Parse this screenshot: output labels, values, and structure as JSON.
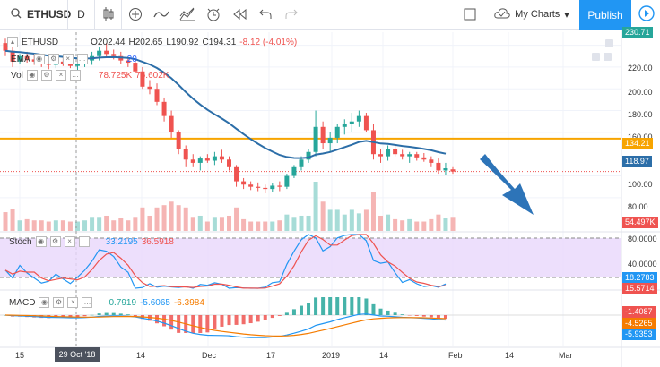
{
  "toolbar": {
    "symbol": "ETHUSD",
    "interval": "D",
    "my_charts": "My Charts",
    "publish": "Publish",
    "icons": [
      "search-icon",
      "candles-icon",
      "compare-icon",
      "indicators-icon",
      "templates-icon",
      "alert-icon",
      "replay-icon",
      "undo-icon",
      "redo-icon",
      "fullscreen-box-icon",
      "cloud-icon",
      "settings-icon",
      "fullscreen-icon",
      "snapshot-icon",
      "play-icon"
    ]
  },
  "legend": {
    "main_symbol": "ETHUSD",
    "open": "O202.44",
    "high": "H202.65",
    "low": "L190.92",
    "close": "C194.31",
    "change": "-8.12 (-4.01%)",
    "ema_label": "EMA",
    "ema_value": "20",
    "volume_label": "Vol",
    "volume_a": "78.725K",
    "volume_b": "76.602K",
    "stoch_label": "Stoch",
    "stoch_k": "33.2195",
    "stoch_d": "36.5918",
    "macd_label": "MACD",
    "macd_hist": "0.7919",
    "macd_line": "-5.6065",
    "macd_signal": "-6.3984"
  },
  "price_axis": {
    "labels": [
      "230.71",
      "220.00",
      "200.00",
      "180.00",
      "160.00",
      "140.00",
      "134.21",
      "118.97",
      "100.00",
      "80.00",
      "54.497K"
    ],
    "badge_current": "230.71",
    "badge_hline": "134.21",
    "badge_ema": "118.97",
    "badge_vol": "54.497K"
  },
  "stoch_axis": {
    "labels": [
      "80.0000",
      "40.0000"
    ],
    "badge_k": "18.2783",
    "badge_d": "15.5714"
  },
  "macd_axis": {
    "badge_hist": "-1.4087",
    "badge_signal": "-4.5265",
    "badge_line": "-5.9353"
  },
  "time_axis": {
    "labels": [
      "15",
      "Dec",
      "17",
      "2019",
      "14",
      "Feb",
      "14",
      "Mar"
    ],
    "crosshair": "29 Oct '18"
  },
  "colors": {
    "up": "#26a69a",
    "down": "#ef5350",
    "ema": "#2962ff",
    "ema_line": "#2c6ea8",
    "hline": "#f7a400",
    "stoch_bg": "#e8d7fb",
    "stoch_k": "#2196f3",
    "stoch_d": "#ef5350",
    "macd_line": "#2196f3",
    "macd_signal": "#f57c00",
    "arrow": "#2d74b8",
    "publish": "#2196f3"
  },
  "chart_data": {
    "type": "candlestick",
    "title": "ETHUSD, D",
    "ylim": [
      70,
      232
    ],
    "ohlc": [
      [
        222,
        226,
        210,
        215
      ],
      [
        215,
        219,
        200,
        205
      ],
      [
        205,
        212,
        203,
        210
      ],
      [
        210,
        214,
        204,
        207
      ],
      [
        207,
        211,
        202,
        205
      ],
      [
        205,
        209,
        200,
        203
      ],
      [
        203,
        206,
        198,
        202
      ],
      [
        202,
        208,
        199,
        205
      ],
      [
        205,
        210,
        201,
        203
      ],
      [
        203,
        207,
        199,
        201
      ],
      [
        201,
        205,
        197,
        203
      ],
      [
        203,
        209,
        200,
        206
      ],
      [
        206,
        214,
        202,
        210
      ],
      [
        210,
        218,
        206,
        215
      ],
      [
        215,
        222,
        209,
        212
      ],
      [
        212,
        216,
        207,
        210
      ],
      [
        210,
        214,
        203,
        206
      ],
      [
        206,
        209,
        200,
        204
      ],
      [
        204,
        207,
        195,
        196
      ],
      [
        196,
        200,
        180,
        182
      ],
      [
        182,
        188,
        175,
        180
      ],
      [
        180,
        185,
        165,
        168
      ],
      [
        168,
        172,
        150,
        155
      ],
      [
        155,
        160,
        135,
        140
      ],
      [
        140,
        142,
        120,
        125
      ],
      [
        125,
        128,
        108,
        115
      ],
      [
        115,
        120,
        108,
        112
      ],
      [
        112,
        118,
        105,
        116
      ],
      [
        116,
        120,
        112,
        114
      ],
      [
        114,
        122,
        110,
        118
      ],
      [
        118,
        124,
        112,
        115
      ],
      [
        115,
        118,
        105,
        108
      ],
      [
        108,
        110,
        90,
        95
      ],
      [
        95,
        98,
        88,
        92
      ],
      [
        92,
        95,
        87,
        90
      ],
      [
        90,
        94,
        86,
        89
      ],
      [
        89,
        92,
        84,
        88
      ],
      [
        88,
        93,
        85,
        91
      ],
      [
        91,
        95,
        86,
        90
      ],
      [
        90,
        102,
        88,
        100
      ],
      [
        100,
        110,
        98,
        108
      ],
      [
        108,
        118,
        105,
        115
      ],
      [
        115,
        125,
        112,
        122
      ],
      [
        122,
        160,
        118,
        145
      ],
      [
        145,
        150,
        125,
        130
      ],
      [
        130,
        140,
        122,
        135
      ],
      [
        135,
        148,
        130,
        145
      ],
      [
        145,
        152,
        138,
        148
      ],
      [
        148,
        158,
        140,
        150
      ],
      [
        150,
        160,
        145,
        155
      ],
      [
        155,
        158,
        140,
        142
      ],
      [
        142,
        148,
        115,
        120
      ],
      [
        120,
        125,
        112,
        118
      ],
      [
        118,
        128,
        114,
        125
      ],
      [
        125,
        128,
        118,
        120
      ],
      [
        120,
        124,
        115,
        118
      ],
      [
        118,
        122,
        112,
        120
      ],
      [
        120,
        122,
        114,
        117
      ],
      [
        117,
        121,
        113,
        115
      ],
      [
        115,
        118,
        108,
        112
      ],
      [
        112,
        116,
        102,
        105
      ],
      [
        105,
        112,
        101,
        107
      ],
      [
        202,
        203,
        191,
        194
      ]
    ],
    "ema_period": 20,
    "hline": 134.21,
    "stoch": {
      "k": 33.2195,
      "d": 36.5918,
      "levels": [
        80,
        20
      ]
    },
    "macd": {
      "macd": -5.6065,
      "signal": -6.3984,
      "hist": 0.7919
    }
  }
}
